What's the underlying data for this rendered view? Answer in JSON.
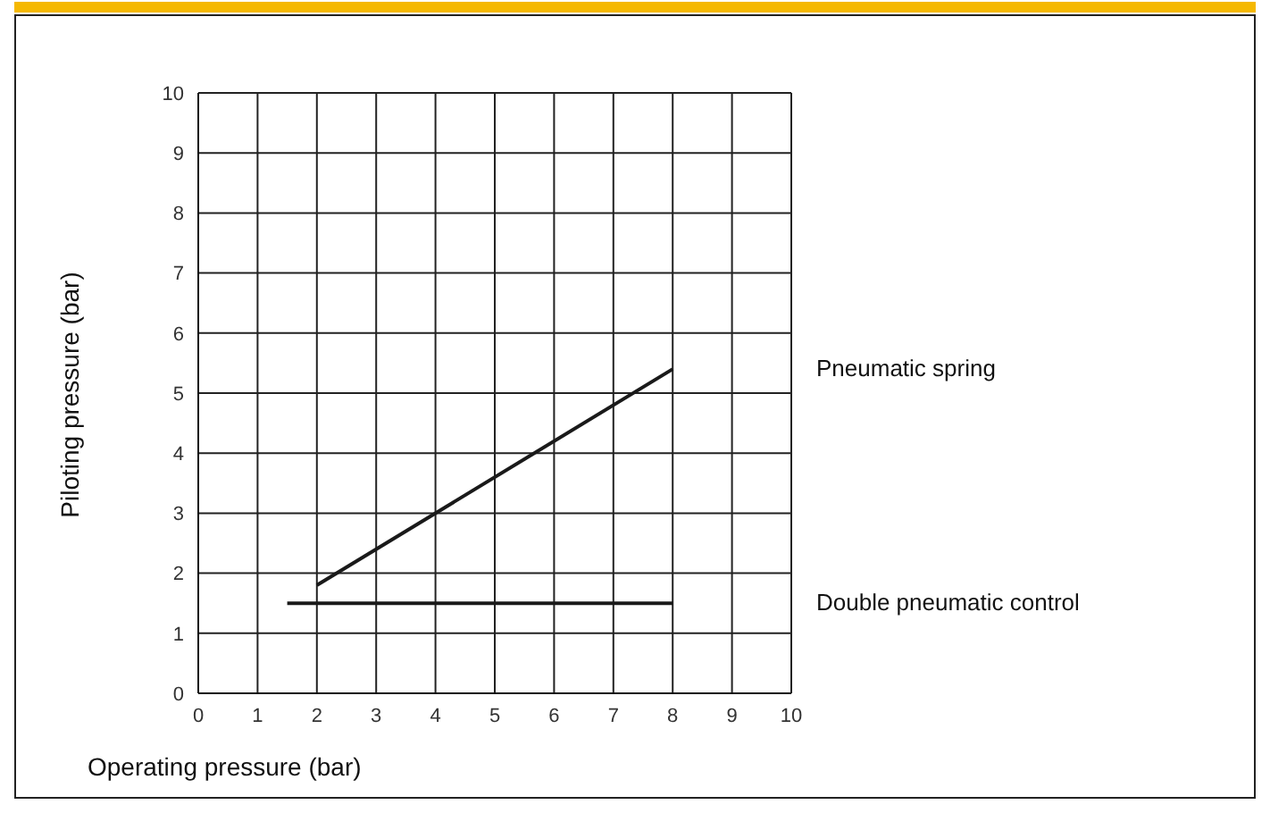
{
  "chart_data": {
    "type": "line",
    "xlabel": "Operating pressure (bar)",
    "ylabel": "Piloting pressure (bar)",
    "xlim": [
      0,
      10
    ],
    "ylim": [
      0,
      10
    ],
    "xticks": [
      0,
      1,
      2,
      3,
      4,
      5,
      6,
      7,
      8,
      9,
      10
    ],
    "yticks": [
      0,
      1,
      2,
      3,
      4,
      5,
      6,
      7,
      8,
      9,
      10
    ],
    "grid": true,
    "marker": "none",
    "line_style": "solid",
    "series": [
      {
        "name": "Pneumatic spring",
        "color": "#1a1a1a",
        "x": [
          2,
          8
        ],
        "values": [
          1.8,
          5.4
        ]
      },
      {
        "name": "Double pneumatic control",
        "color": "#1a1a1a",
        "x": [
          1.5,
          8
        ],
        "values": [
          1.5,
          1.5
        ]
      }
    ]
  }
}
